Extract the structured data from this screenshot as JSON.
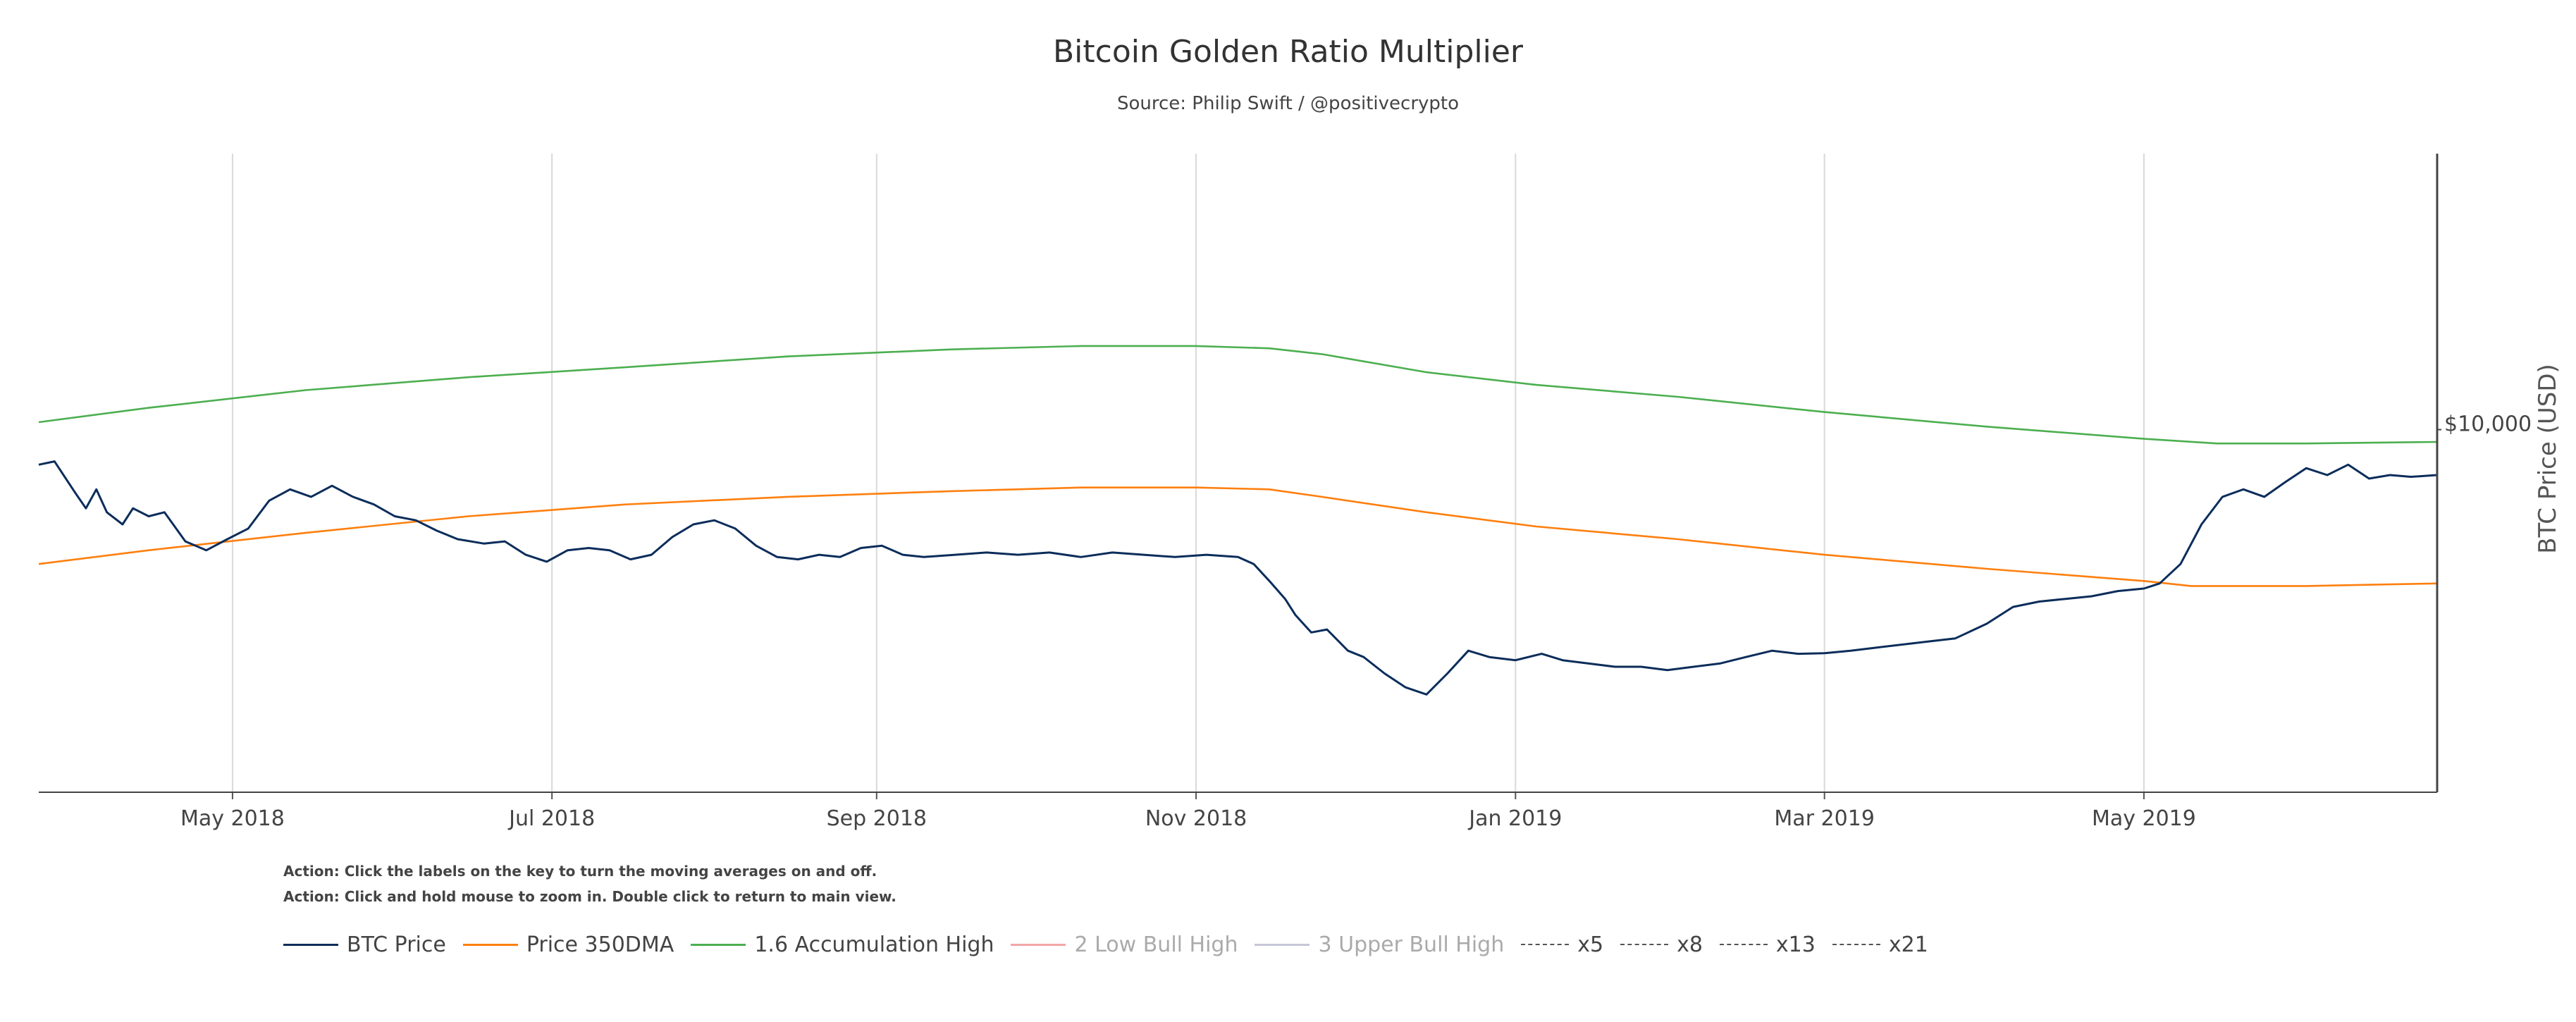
{
  "chart_data": {
    "type": "line",
    "title": "Bitcoin Golden Ratio Multiplier",
    "subtitle": "Source: Philip Swift / @positivecrypto",
    "ylabel": "BTC Price (USD)",
    "yscale": "log",
    "ylim": [
      3000,
      25000
    ],
    "ytick_labels": [
      {
        "value": 10000,
        "label": "$10,000"
      }
    ],
    "xlim": [
      "2018-03-25",
      "2019-06-26"
    ],
    "xtick_labels": [
      {
        "date": "2018-05-01",
        "label": "May 2018"
      },
      {
        "date": "2018-07-01",
        "label": "Jul 2018"
      },
      {
        "date": "2018-09-01",
        "label": "Sep 2018"
      },
      {
        "date": "2018-11-01",
        "label": "Nov 2018"
      },
      {
        "date": "2019-01-01",
        "label": "Jan 2019"
      },
      {
        "date": "2019-03-01",
        "label": "Mar 2019"
      },
      {
        "date": "2019-05-01",
        "label": "May 2019"
      }
    ],
    "grid": "vertical",
    "series": [
      {
        "name": "BTC Price",
        "color": "#0b2d5b",
        "visible": true,
        "points": [
          [
            "2018-03-25",
            8900
          ],
          [
            "2018-03-28",
            9000
          ],
          [
            "2018-04-01",
            8100
          ],
          [
            "2018-04-03",
            7700
          ],
          [
            "2018-04-05",
            8200
          ],
          [
            "2018-04-07",
            7600
          ],
          [
            "2018-04-10",
            7300
          ],
          [
            "2018-04-12",
            7700
          ],
          [
            "2018-04-15",
            7500
          ],
          [
            "2018-04-18",
            7600
          ],
          [
            "2018-04-22",
            6900
          ],
          [
            "2018-04-26",
            6700
          ],
          [
            "2018-04-30",
            6950
          ],
          [
            "2018-05-04",
            7200
          ],
          [
            "2018-05-08",
            7900
          ],
          [
            "2018-05-12",
            8200
          ],
          [
            "2018-05-16",
            8000
          ],
          [
            "2018-05-20",
            8300
          ],
          [
            "2018-05-24",
            8000
          ],
          [
            "2018-05-28",
            7800
          ],
          [
            "2018-06-01",
            7500
          ],
          [
            "2018-06-05",
            7400
          ],
          [
            "2018-06-09",
            7150
          ],
          [
            "2018-06-13",
            6950
          ],
          [
            "2018-06-18",
            6850
          ],
          [
            "2018-06-22",
            6900
          ],
          [
            "2018-06-26",
            6600
          ],
          [
            "2018-06-30",
            6450
          ],
          [
            "2018-07-04",
            6700
          ],
          [
            "2018-07-08",
            6750
          ],
          [
            "2018-07-12",
            6700
          ],
          [
            "2018-07-16",
            6500
          ],
          [
            "2018-07-20",
            6600
          ],
          [
            "2018-07-24",
            7000
          ],
          [
            "2018-07-28",
            7300
          ],
          [
            "2018-08-01",
            7400
          ],
          [
            "2018-08-05",
            7200
          ],
          [
            "2018-08-09",
            6800
          ],
          [
            "2018-08-13",
            6550
          ],
          [
            "2018-08-17",
            6500
          ],
          [
            "2018-08-21",
            6600
          ],
          [
            "2018-08-25",
            6550
          ],
          [
            "2018-08-29",
            6750
          ],
          [
            "2018-09-02",
            6800
          ],
          [
            "2018-09-06",
            6600
          ],
          [
            "2018-09-10",
            6550
          ],
          [
            "2018-09-16",
            6600
          ],
          [
            "2018-09-22",
            6650
          ],
          [
            "2018-09-28",
            6600
          ],
          [
            "2018-10-04",
            6650
          ],
          [
            "2018-10-10",
            6550
          ],
          [
            "2018-10-16",
            6650
          ],
          [
            "2018-10-22",
            6600
          ],
          [
            "2018-10-28",
            6550
          ],
          [
            "2018-11-03",
            6600
          ],
          [
            "2018-11-09",
            6550
          ],
          [
            "2018-11-12",
            6400
          ],
          [
            "2018-11-15",
            6050
          ],
          [
            "2018-11-18",
            5700
          ],
          [
            "2018-11-20",
            5400
          ],
          [
            "2018-11-23",
            5100
          ],
          [
            "2018-11-26",
            5150
          ],
          [
            "2018-11-30",
            4800
          ],
          [
            "2018-12-03",
            4700
          ],
          [
            "2018-12-07",
            4450
          ],
          [
            "2018-12-11",
            4250
          ],
          [
            "2018-12-15",
            4150
          ],
          [
            "2018-12-19",
            4450
          ],
          [
            "2018-12-23",
            4800
          ],
          [
            "2018-12-27",
            4700
          ],
          [
            "2019-01-01",
            4650
          ],
          [
            "2019-01-06",
            4750
          ],
          [
            "2019-01-10",
            4650
          ],
          [
            "2019-01-15",
            4600
          ],
          [
            "2019-01-20",
            4550
          ],
          [
            "2019-01-25",
            4550
          ],
          [
            "2019-01-30",
            4500
          ],
          [
            "2019-02-04",
            4550
          ],
          [
            "2019-02-09",
            4600
          ],
          [
            "2019-02-14",
            4700
          ],
          [
            "2019-02-19",
            4800
          ],
          [
            "2019-02-24",
            4750
          ],
          [
            "2019-03-01",
            4760
          ],
          [
            "2019-03-06",
            4800
          ],
          [
            "2019-03-11",
            4850
          ],
          [
            "2019-03-16",
            4900
          ],
          [
            "2019-03-21",
            4950
          ],
          [
            "2019-03-26",
            5000
          ],
          [
            "2019-04-01",
            5250
          ],
          [
            "2019-04-06",
            5550
          ],
          [
            "2019-04-11",
            5650
          ],
          [
            "2019-04-16",
            5700
          ],
          [
            "2019-04-21",
            5750
          ],
          [
            "2019-04-26",
            5850
          ],
          [
            "2019-05-01",
            5900
          ],
          [
            "2019-05-04",
            6000
          ],
          [
            "2019-05-08",
            6400
          ],
          [
            "2019-05-12",
            7300
          ],
          [
            "2019-05-16",
            8000
          ],
          [
            "2019-05-20",
            8200
          ],
          [
            "2019-05-24",
            8000
          ],
          [
            "2019-05-28",
            8400
          ],
          [
            "2019-06-01",
            8800
          ],
          [
            "2019-06-05",
            8600
          ],
          [
            "2019-06-09",
            8900
          ],
          [
            "2019-06-13",
            8500
          ],
          [
            "2019-06-17",
            8600
          ],
          [
            "2019-06-21",
            8550
          ],
          [
            "2019-06-26",
            8600
          ]
        ]
      },
      {
        "name": "Price 350DMA",
        "color": "#ff7f0e",
        "visible": true,
        "points": [
          [
            "2018-03-25",
            6400
          ],
          [
            "2018-04-15",
            6700
          ],
          [
            "2018-05-15",
            7100
          ],
          [
            "2018-06-15",
            7500
          ],
          [
            "2018-07-15",
            7800
          ],
          [
            "2018-08-15",
            8000
          ],
          [
            "2018-09-15",
            8150
          ],
          [
            "2018-10-10",
            8250
          ],
          [
            "2018-11-01",
            8250
          ],
          [
            "2018-11-15",
            8200
          ],
          [
            "2018-11-25",
            8000
          ],
          [
            "2018-12-15",
            7600
          ],
          [
            "2019-01-05",
            7250
          ],
          [
            "2019-02-01",
            6950
          ],
          [
            "2019-03-01",
            6600
          ],
          [
            "2019-04-01",
            6300
          ],
          [
            "2019-05-01",
            6050
          ],
          [
            "2019-05-10",
            5950
          ],
          [
            "2019-06-01",
            5950
          ],
          [
            "2019-06-26",
            6000
          ]
        ]
      },
      {
        "name": "1.6 Accumulation High",
        "color": "#4caf50",
        "visible": true,
        "points": [
          [
            "2018-03-25",
            10250
          ],
          [
            "2018-04-15",
            10750
          ],
          [
            "2018-05-15",
            11400
          ],
          [
            "2018-06-15",
            11900
          ],
          [
            "2018-07-15",
            12300
          ],
          [
            "2018-08-15",
            12750
          ],
          [
            "2018-09-15",
            13050
          ],
          [
            "2018-10-10",
            13200
          ],
          [
            "2018-11-01",
            13200
          ],
          [
            "2018-11-15",
            13100
          ],
          [
            "2018-11-25",
            12850
          ],
          [
            "2018-12-15",
            12100
          ],
          [
            "2019-01-05",
            11600
          ],
          [
            "2019-02-01",
            11150
          ],
          [
            "2019-03-01",
            10600
          ],
          [
            "2019-04-01",
            10100
          ],
          [
            "2019-05-01",
            9700
          ],
          [
            "2019-05-15",
            9550
          ],
          [
            "2019-06-01",
            9550
          ],
          [
            "2019-06-26",
            9600
          ]
        ]
      },
      {
        "name": "2 Low Bull High",
        "color": "#f4a6a6",
        "visible": false,
        "points": []
      },
      {
        "name": "3 Upper Bull High",
        "color": "#c6c6d8",
        "visible": false,
        "points": []
      },
      {
        "name": "x5",
        "color": "#555555",
        "visible": false,
        "points": []
      },
      {
        "name": "x8",
        "color": "#555555",
        "visible": false,
        "points": []
      },
      {
        "name": "x13",
        "color": "#555555",
        "visible": false,
        "points": []
      },
      {
        "name": "x21",
        "color": "#555555",
        "visible": false,
        "points": []
      }
    ]
  },
  "actions": [
    "Action: Click the labels on the key to turn the moving averages on and off.",
    "Action: Click and hold mouse to zoom in.  Double click to return to main view."
  ],
  "legend": [
    {
      "label": "BTC Price",
      "color": "#0b2d5b",
      "style": "solid",
      "active": true
    },
    {
      "label": "Price 350DMA",
      "color": "#ff7f0e",
      "style": "solid",
      "active": true
    },
    {
      "label": "1.6 Accumulation High",
      "color": "#4caf50",
      "style": "solid",
      "active": true
    },
    {
      "label": "2 Low Bull High",
      "color": "#f4a6a6",
      "style": "solid",
      "active": false
    },
    {
      "label": "3 Upper Bull High",
      "color": "#c6c6d8",
      "style": "solid",
      "active": false
    },
    {
      "label": "x5",
      "color": "#555555",
      "style": "dashed",
      "active": true
    },
    {
      "label": "x8",
      "color": "#555555",
      "style": "dashed",
      "active": true
    },
    {
      "label": "x13",
      "color": "#555555",
      "style": "dashed",
      "active": true
    },
    {
      "label": "x21",
      "color": "#555555",
      "style": "dashed",
      "active": true
    }
  ]
}
